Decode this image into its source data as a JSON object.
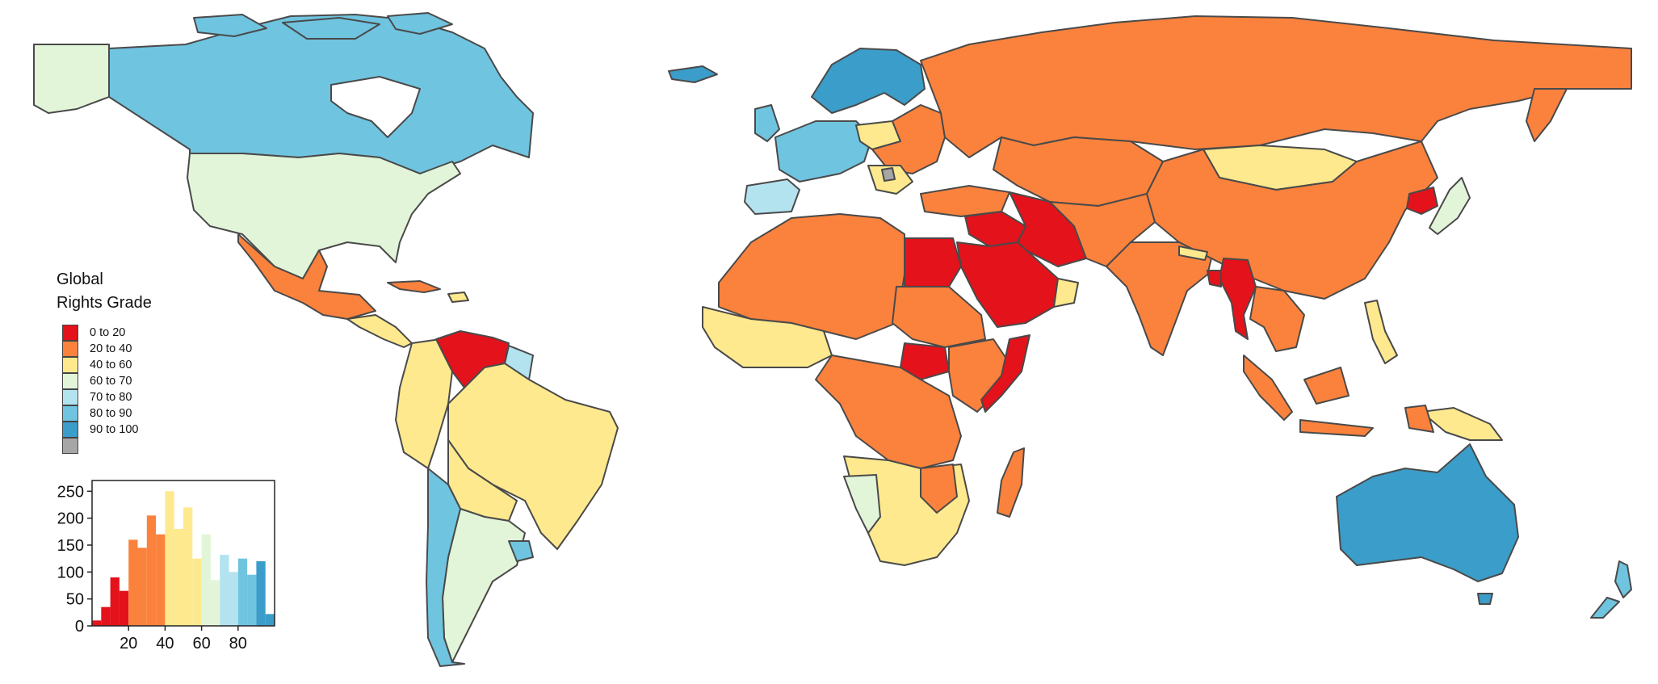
{
  "legend": {
    "title_line1": "Global",
    "title_line2": "Rights Grade",
    "items": [
      {
        "label": "0 to 20",
        "color": "#e3121b"
      },
      {
        "label": "20 to 40",
        "color": "#fb823d"
      },
      {
        "label": "40 to 60",
        "color": "#fee98e"
      },
      {
        "label": "60 to 70",
        "color": "#e2f5d9"
      },
      {
        "label": "70 to 80",
        "color": "#b3e3ef"
      },
      {
        "label": "80 to 90",
        "color": "#6fc4e0"
      },
      {
        "label": "90 to 100",
        "color": "#3b9dc9"
      },
      {
        "label": "",
        "color": "#a6a6a6"
      }
    ]
  },
  "chart_data": {
    "type": "bar",
    "x_ticks": [
      "20",
      "40",
      "60",
      "80"
    ],
    "y_ticks": [
      "0",
      "50",
      "100",
      "150",
      "200",
      "250"
    ],
    "xlim": [
      0,
      100
    ],
    "ylim": [
      0,
      270
    ],
    "bin_width": 5,
    "bins": [
      {
        "start": 0,
        "value": 10,
        "color": "#e3121b"
      },
      {
        "start": 5,
        "value": 35,
        "color": "#e3121b"
      },
      {
        "start": 10,
        "value": 90,
        "color": "#e3121b"
      },
      {
        "start": 15,
        "value": 65,
        "color": "#e3121b"
      },
      {
        "start": 20,
        "value": 160,
        "color": "#fb823d"
      },
      {
        "start": 25,
        "value": 145,
        "color": "#fb823d"
      },
      {
        "start": 30,
        "value": 205,
        "color": "#fb823d"
      },
      {
        "start": 35,
        "value": 170,
        "color": "#fb823d"
      },
      {
        "start": 40,
        "value": 250,
        "color": "#fee98e"
      },
      {
        "start": 45,
        "value": 180,
        "color": "#fee98e"
      },
      {
        "start": 50,
        "value": 220,
        "color": "#fee98e"
      },
      {
        "start": 55,
        "value": 125,
        "color": "#fee98e"
      },
      {
        "start": 60,
        "value": 170,
        "color": "#e2f5d9"
      },
      {
        "start": 65,
        "value": 85,
        "color": "#e2f5d9"
      },
      {
        "start": 70,
        "value": 132,
        "color": "#b3e3ef"
      },
      {
        "start": 75,
        "value": 100,
        "color": "#b3e3ef"
      },
      {
        "start": 80,
        "value": 125,
        "color": "#6fc4e0"
      },
      {
        "start": 85,
        "value": 95,
        "color": "#6fc4e0"
      },
      {
        "start": 90,
        "value": 120,
        "color": "#3b9dc9"
      },
      {
        "start": 95,
        "value": 22,
        "color": "#3b9dc9"
      }
    ]
  }
}
